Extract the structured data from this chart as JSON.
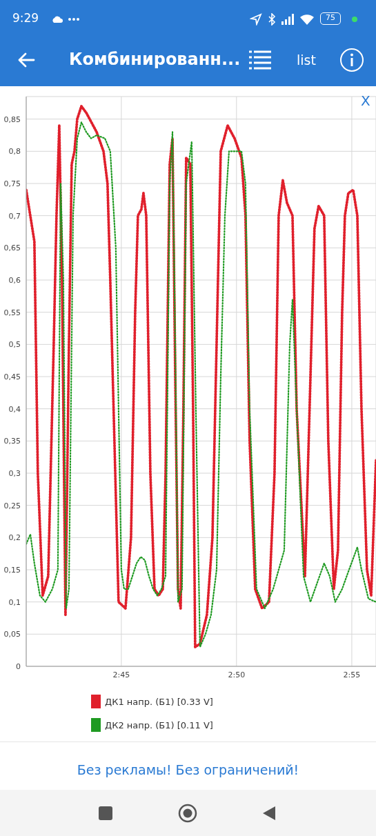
{
  "chart_data": {
    "type": "line",
    "title": "Комбинированн...",
    "annotations": [
      "9:29",
      "75",
      "list",
      "X",
      "Без рекламы! Без ограничений!"
    ],
    "xlim": [
      2.6812,
      2.9342
    ],
    "xticks": [
      {
        "value": 2.75,
        "label": "2:45"
      },
      {
        "value": 2.8333,
        "label": "2:50"
      },
      {
        "value": 2.9167,
        "label": "2:55"
      }
    ],
    "ylim": [
      0,
      0.885
    ],
    "yticks": [
      0,
      {
        "value": 0.05,
        "label": "0,05"
      },
      {
        "value": 0.1,
        "label": "0,1"
      },
      {
        "value": 0.15,
        "label": "0,15"
      },
      {
        "value": 0.2,
        "label": "0,2"
      },
      {
        "value": 0.25,
        "label": "0,25"
      },
      {
        "value": 0.3,
        "label": "0,3"
      },
      {
        "value": 0.35,
        "label": "0,35"
      },
      {
        "value": 0.4,
        "label": "0,4"
      },
      {
        "value": 0.45,
        "label": "0,45"
      },
      {
        "value": 0.5,
        "label": "0,5"
      },
      {
        "value": 0.55,
        "label": "0,55"
      },
      {
        "value": 0.6,
        "label": "0,6"
      },
      {
        "value": 0.65,
        "label": "0,65"
      },
      {
        "value": 0.7,
        "label": "0,7"
      },
      {
        "value": 0.75,
        "label": "0,75"
      },
      {
        "value": 0.8,
        "label": "0,8"
      },
      {
        "value": 0.85,
        "label": "0,85"
      }
    ],
    "grid": true,
    "legend": "bottom",
    "marker": "none",
    "line_style": "dotted",
    "series": [
      {
        "name": "ДК1 напр. (Б1) [0.33 V]",
        "color": "#e0202c",
        "x": [
          2.6812,
          2.6871,
          2.6896,
          2.6931,
          2.6971,
          2.7011,
          2.7031,
          2.7051,
          2.7071,
          2.7096,
          2.7121,
          2.7141,
          2.7161,
          2.7181,
          2.7211,
          2.7246,
          2.7321,
          2.7371,
          2.74,
          2.742,
          2.745,
          2.748,
          2.753,
          2.757,
          2.76,
          2.762,
          2.7645,
          2.766,
          2.768,
          2.771,
          2.774,
          2.777,
          2.78,
          2.782,
          2.785,
          2.787,
          2.789,
          2.791,
          2.7929,
          2.7949,
          2.7969,
          2.7999,
          2.8019,
          2.8034,
          2.8069,
          2.8119,
          2.8159,
          2.8189,
          2.8219,
          2.8269,
          2.8319,
          2.8369,
          2.8398,
          2.8428,
          2.8468,
          2.8518,
          2.8568,
          2.8608,
          2.8638,
          2.8668,
          2.8698,
          2.8738,
          2.8768,
          2.8828,
          2.8868,
          2.8897,
          2.8927,
          2.8967,
          2.8997,
          2.9037,
          2.9067,
          2.9097,
          2.9117,
          2.9142,
          2.9177,
          2.9207,
          2.9237,
          2.9277,
          2.9307,
          2.9342
        ],
        "values": [
          0.74,
          0.66,
          0.3,
          0.11,
          0.14,
          0.5,
          0.7,
          0.84,
          0.6,
          0.08,
          0.5,
          0.78,
          0.8,
          0.85,
          0.87,
          0.86,
          0.83,
          0.8,
          0.75,
          0.6,
          0.35,
          0.1,
          0.09,
          0.2,
          0.55,
          0.7,
          0.71,
          0.735,
          0.7,
          0.3,
          0.12,
          0.11,
          0.12,
          0.3,
          0.78,
          0.82,
          0.45,
          0.12,
          0.09,
          0.4,
          0.79,
          0.78,
          0.4,
          0.03,
          0.035,
          0.08,
          0.2,
          0.5,
          0.8,
          0.84,
          0.82,
          0.79,
          0.7,
          0.35,
          0.12,
          0.09,
          0.1,
          0.3,
          0.7,
          0.755,
          0.72,
          0.7,
          0.4,
          0.14,
          0.45,
          0.68,
          0.715,
          0.7,
          0.35,
          0.12,
          0.18,
          0.55,
          0.7,
          0.735,
          0.74,
          0.7,
          0.4,
          0.15,
          0.11,
          0.32
        ]
      },
      {
        "name": "ДК2 напр. (Б1) [0.11 V]",
        "color": "#1f9a22",
        "x": [
          2.6812,
          2.6842,
          2.6871,
          2.6911,
          2.6951,
          2.7001,
          2.7041,
          2.7061,
          2.7081,
          2.7101,
          2.7121,
          2.7151,
          2.7181,
          2.7211,
          2.7246,
          2.7281,
          2.7321,
          2.7381,
          2.742,
          2.746,
          2.748,
          2.75,
          2.752,
          2.755,
          2.758,
          2.761,
          2.764,
          2.767,
          2.77,
          2.773,
          2.776,
          2.779,
          2.782,
          2.785,
          2.787,
          2.789,
          2.791,
          2.7939,
          2.7969,
          2.8009,
          2.8039,
          2.8069,
          2.8109,
          2.8149,
          2.8189,
          2.8219,
          2.8249,
          2.8279,
          2.8319,
          2.8369,
          2.8398,
          2.8428,
          2.8478,
          2.8538,
          2.8598,
          2.8678,
          2.8718,
          2.8738,
          2.8768,
          2.8818,
          2.8868,
          2.8917,
          2.8967,
          2.9007,
          2.9047,
          2.9097,
          2.9147,
          2.9207,
          2.9237,
          2.9287,
          2.9342
        ],
        "values": [
          0.19,
          0.205,
          0.16,
          0.11,
          0.1,
          0.12,
          0.15,
          0.75,
          0.6,
          0.09,
          0.12,
          0.7,
          0.82,
          0.845,
          0.83,
          0.82,
          0.825,
          0.82,
          0.8,
          0.65,
          0.4,
          0.15,
          0.12,
          0.12,
          0.14,
          0.16,
          0.17,
          0.165,
          0.14,
          0.12,
          0.11,
          0.12,
          0.14,
          0.75,
          0.83,
          0.5,
          0.1,
          0.12,
          0.75,
          0.815,
          0.4,
          0.03,
          0.05,
          0.08,
          0.15,
          0.45,
          0.7,
          0.8,
          0.8,
          0.8,
          0.75,
          0.4,
          0.12,
          0.09,
          0.12,
          0.18,
          0.5,
          0.57,
          0.4,
          0.14,
          0.1,
          0.13,
          0.16,
          0.14,
          0.1,
          0.12,
          0.15,
          0.185,
          0.15,
          0.105,
          0.1
        ]
      }
    ]
  }
}
